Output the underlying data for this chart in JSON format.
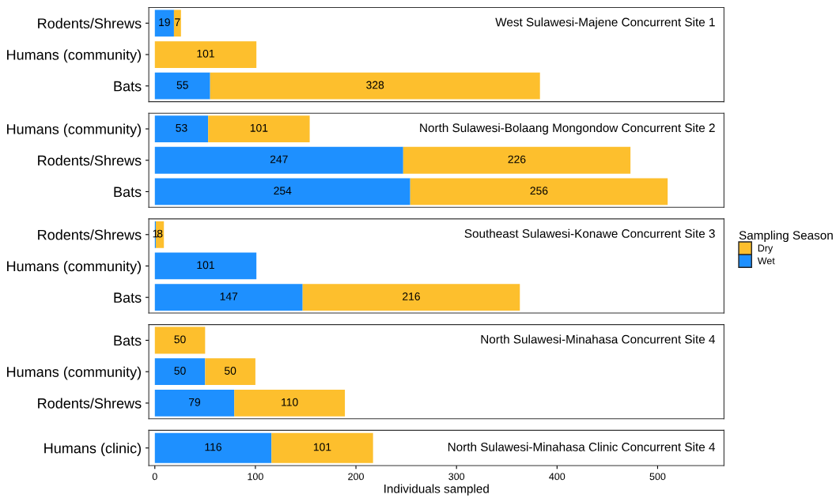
{
  "chart_data": [
    {
      "type": "bar",
      "orientation": "horizontal",
      "stacked": true,
      "title": "West Sulawesi-Majene Concurrent Site 1",
      "categories": [
        "Rodents/Shrews",
        "Humans (community)",
        "Bats"
      ],
      "xlim": [
        -6,
        566
      ],
      "tick_labels": "y",
      "data_labels": true,
      "legend": "right",
      "legend_title": "Sampling Season",
      "series": [
        {
          "name": "Wet",
          "color": "#1e90ff",
          "values": [
            19,
            null,
            55
          ]
        },
        {
          "name": "Dry",
          "color": "#fdbf2d",
          "values": [
            7,
            101,
            328
          ]
        }
      ]
    },
    {
      "type": "bar",
      "orientation": "horizontal",
      "stacked": true,
      "title": "North Sulawesi-Bolaang Mongondow Concurrent Site 2",
      "categories": [
        "Humans (community)",
        "Rodents/Shrews",
        "Bats"
      ],
      "xlim": [
        -6,
        566
      ],
      "tick_labels": "y",
      "data_labels": true,
      "legend": false,
      "series": [
        {
          "color": "#1e90ff",
          "values": [
            53,
            247,
            254
          ]
        },
        {
          "color": "#fdbf2d",
          "values": [
            101,
            226,
            256
          ]
        }
      ]
    },
    {
      "type": "bar",
      "orientation": "horizontal",
      "stacked": true,
      "title": "Southeast Sulawesi-Konawe Concurrent Site 3",
      "categories": [
        "Rodents/Shrews",
        "Humans (community)",
        "Bats"
      ],
      "xlim": [
        -6,
        566
      ],
      "tick_labels": "y",
      "data_labels": true,
      "legend": false,
      "series": [
        {
          "color": "#1e90ff",
          "values": [
            1,
            101,
            147
          ]
        },
        {
          "color": "#fdbf2d",
          "values": [
            8,
            null,
            216
          ]
        }
      ]
    },
    {
      "type": "bar",
      "orientation": "horizontal",
      "stacked": true,
      "title": "North Sulawesi-Minahasa Concurrent Site 4",
      "categories": [
        "Bats",
        "Humans (community)",
        "Rodents/Shrews"
      ],
      "xlim": [
        -6,
        566
      ],
      "tick_labels": "y",
      "data_labels": true,
      "legend": false,
      "series": [
        {
          "color": "#1e90ff",
          "values": [
            null,
            50,
            79
          ]
        },
        {
          "color": "#fdbf2d",
          "values": [
            50,
            50,
            110
          ]
        }
      ]
    },
    {
      "type": "bar",
      "orientation": "horizontal",
      "stacked": true,
      "title": "North Sulawesi-Minahasa Clinic Concurrent Site 4",
      "categories": [
        "Humans (clinic)"
      ],
      "xlim": [
        -6,
        566
      ],
      "xticks": [
        0,
        100,
        200,
        300,
        400,
        500
      ],
      "xlabel": "Individuals sampled",
      "data_labels": true,
      "legend": false,
      "series": [
        {
          "color": "#1e90ff",
          "values": [
            116
          ]
        },
        {
          "color": "#fdbf2d",
          "values": [
            101
          ]
        }
      ]
    }
  ]
}
